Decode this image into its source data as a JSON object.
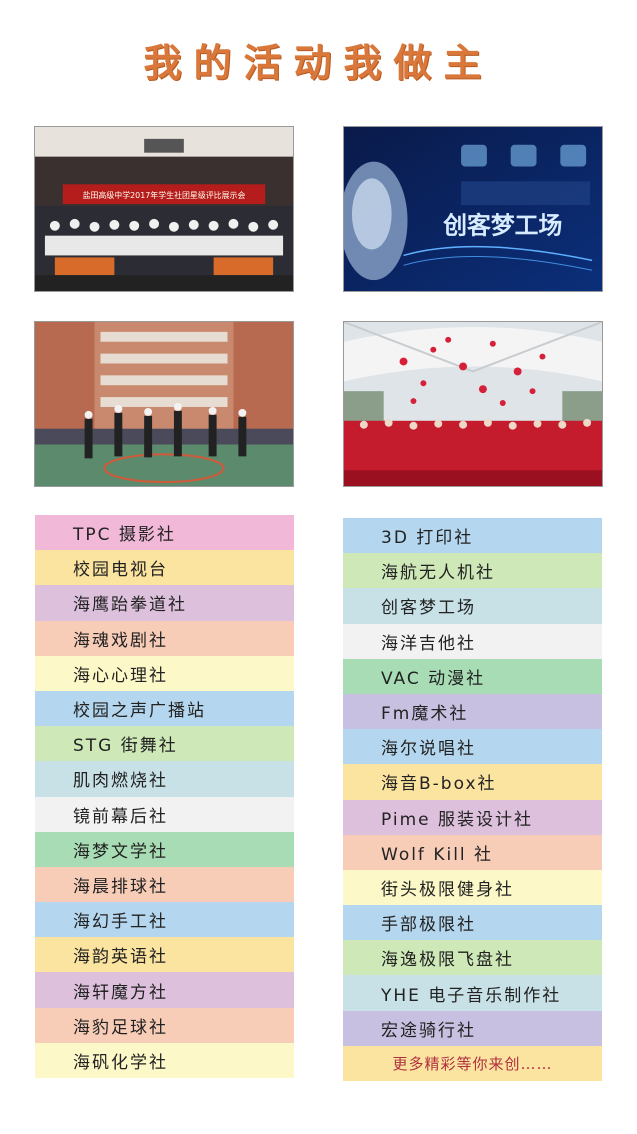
{
  "title": "我的活动我做主",
  "photos": {
    "p1": {
      "banner": "盐田高级中学2017年学生社团星级评比展示会"
    },
    "p2": {
      "title": "创客梦工场"
    }
  },
  "left_clubs": [
    {
      "label": "TPC 摄影社",
      "color": "#f2b8d8"
    },
    {
      "label": "校园电视台",
      "color": "#fbe3a0"
    },
    {
      "label": "海鹰跆拳道社",
      "color": "#dcc0dc"
    },
    {
      "label": "海魂戏剧社",
      "color": "#f8cdb8"
    },
    {
      "label": "海心心理社",
      "color": "#fdf8c8"
    },
    {
      "label": "校园之声广播站",
      "color": "#b4d6ee"
    },
    {
      "label": "STG 街舞社",
      "color": "#cfe8b8"
    },
    {
      "label": "肌肉燃烧社",
      "color": "#c7e1e6"
    },
    {
      "label": "镜前幕后社",
      "color": "#f2f2f2"
    },
    {
      "label": "海梦文学社",
      "color": "#a8dcb4"
    },
    {
      "label": "海晨排球社",
      "color": "#f8cdb8"
    },
    {
      "label": "海幻手工社",
      "color": "#b4d6ee"
    },
    {
      "label": "海韵英语社",
      "color": "#fbe3a0"
    },
    {
      "label": "海轩魔方社",
      "color": "#dcc0dc"
    },
    {
      "label": "海豹足球社",
      "color": "#f8cdb8"
    },
    {
      "label": "海矾化学社",
      "color": "#fdf8c8"
    }
  ],
  "right_clubs": [
    {
      "label": "3D 打印社",
      "color": "#b4d6ee"
    },
    {
      "label": "海航无人机社",
      "color": "#cfe8b8"
    },
    {
      "label": "创客梦工场",
      "color": "#c7e1e6"
    },
    {
      "label": "海洋吉他社",
      "color": "#f2f2f2"
    },
    {
      "label": "VAC 动漫社",
      "color": "#a8dcb4"
    },
    {
      "label": "Fm魔术社",
      "color": "#c8c0e0"
    },
    {
      "label": "海尔说唱社",
      "color": "#b4d6ee"
    },
    {
      "label": "海音B-box社",
      "color": "#fbe3a0"
    },
    {
      "label": "Pime 服装设计社",
      "color": "#dcc0dc"
    },
    {
      "label": "Wolf Kill 社",
      "color": "#f8cdb8"
    },
    {
      "label": "街头极限健身社",
      "color": "#fdf8c8"
    },
    {
      "label": "手部极限社",
      "color": "#b4d6ee"
    },
    {
      "label": "海逸极限飞盘社",
      "color": "#cfe8b8"
    },
    {
      "label": "YHE 电子音乐制作社",
      "color": "#c7e1e6"
    },
    {
      "label": "宏途骑行社",
      "color": "#c8c0e0"
    }
  ],
  "more": {
    "label": "更多精彩等你来创……",
    "color": "#fbe3a0"
  }
}
